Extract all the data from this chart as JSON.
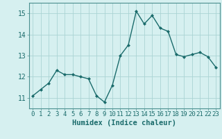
{
  "x": [
    0,
    1,
    2,
    3,
    4,
    5,
    6,
    7,
    8,
    9,
    10,
    11,
    12,
    13,
    14,
    15,
    16,
    17,
    18,
    19,
    20,
    21,
    22,
    23
  ],
  "y": [
    11.1,
    11.4,
    11.7,
    12.3,
    12.1,
    12.1,
    12.0,
    11.9,
    11.1,
    10.8,
    11.6,
    13.0,
    13.5,
    15.1,
    14.5,
    14.9,
    14.3,
    14.15,
    13.05,
    12.95,
    13.05,
    13.15,
    12.95,
    12.45
  ],
  "line_color": "#1a6b6b",
  "marker": "D",
  "marker_size": 2,
  "bg_color": "#d6f0f0",
  "grid_color": "#aad4d4",
  "xlabel": "Humidex (Indice chaleur)",
  "ylim": [
    10.5,
    15.5
  ],
  "xlim": [
    -0.5,
    23.5
  ],
  "yticks": [
    11,
    12,
    13,
    14,
    15
  ],
  "xticks": [
    0,
    1,
    2,
    3,
    4,
    5,
    6,
    7,
    8,
    9,
    10,
    11,
    12,
    13,
    14,
    15,
    16,
    17,
    18,
    19,
    20,
    21,
    22,
    23
  ],
  "xlabel_fontsize": 7.5,
  "tick_fontsize": 6.5,
  "line_width": 1.0,
  "spine_color": "#4a8f8f"
}
